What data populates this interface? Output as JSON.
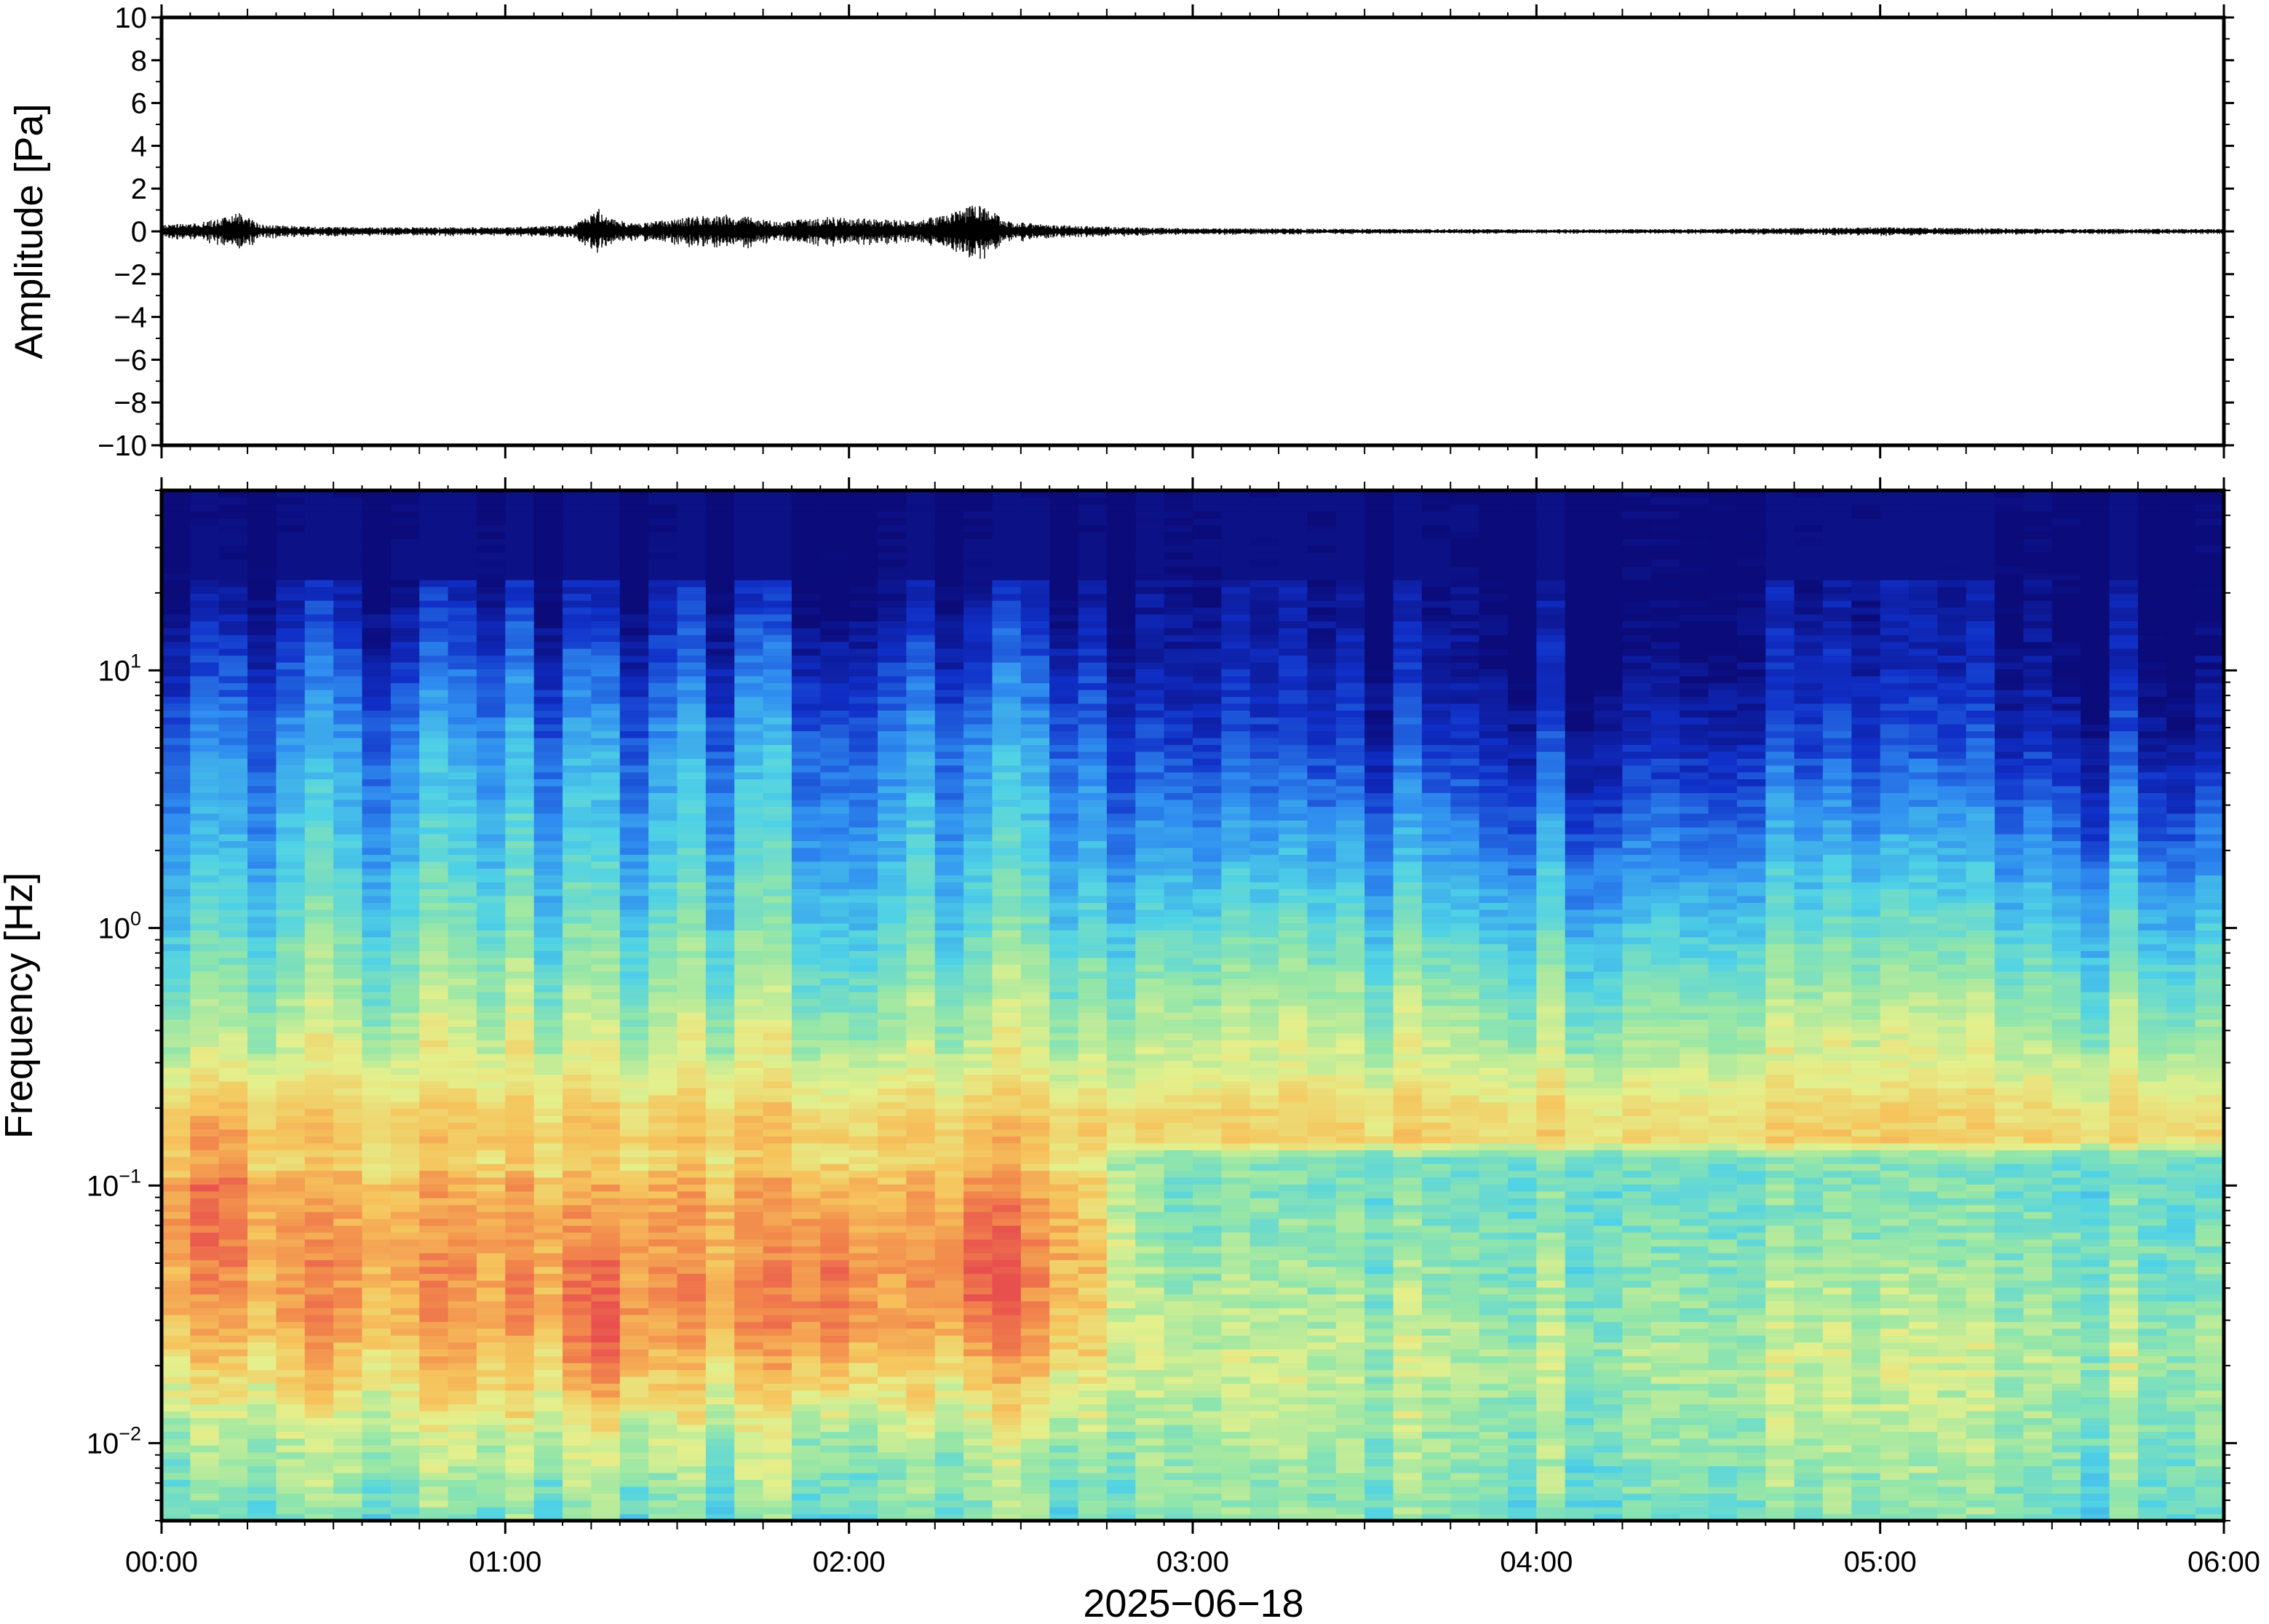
{
  "chart_data": [
    {
      "type": "line",
      "panel": "waveform",
      "ylabel": "Amplitude [Pa]",
      "ylim": [
        -10,
        10
      ],
      "yticks": [
        -10,
        -8,
        -6,
        -4,
        -2,
        0,
        2,
        4,
        6,
        8,
        10
      ],
      "ytick_labels": [
        "−10",
        "−8",
        "−6",
        "−4",
        "−2",
        "0",
        "2",
        "4",
        "6",
        "8",
        "10"
      ],
      "xlim": [
        "00:00",
        "06:00"
      ],
      "series": [
        {
          "t_hours": [
            0.0,
            0.1,
            0.2,
            0.22,
            0.3,
            0.5,
            0.8,
            1.0,
            1.2,
            1.28,
            1.3,
            1.4,
            1.55,
            1.65,
            1.8,
            1.95,
            2.05,
            2.2,
            2.38,
            2.41,
            2.45,
            2.6,
            2.8,
            3.0,
            3.5,
            4.0,
            4.5,
            5.0,
            5.5,
            6.0
          ],
          "envelope_pa": [
            0.3,
            0.4,
            0.7,
            0.9,
            0.3,
            0.2,
            0.2,
            0.2,
            0.3,
            1.2,
            0.6,
            0.4,
            0.7,
            0.8,
            0.5,
            0.7,
            0.6,
            0.5,
            1.3,
            1.1,
            0.5,
            0.3,
            0.2,
            0.15,
            0.12,
            0.1,
            0.12,
            0.2,
            0.12,
            0.12
          ]
        }
      ]
    },
    {
      "type": "heatmap",
      "panel": "spectrogram",
      "ylabel": "Frequency [Hz]",
      "xlabel": "2025−06−18",
      "y_scale": "log",
      "ylim_hz": [
        0.005,
        50
      ],
      "ytick_values": [
        0.01,
        0.1,
        1,
        10
      ],
      "ytick_labels": [
        {
          "base": "10",
          "exp": "−2"
        },
        {
          "base": "10",
          "exp": "−1"
        },
        {
          "base": "10",
          "exp": "0"
        },
        {
          "base": "10",
          "exp": "1"
        }
      ],
      "xticks": [
        "00:00",
        "01:00",
        "02:00",
        "03:00",
        "04:00",
        "05:00",
        "06:00"
      ],
      "colormap": "jet",
      "colormap_stops": [
        "#0b0b7a",
        "#1030c8",
        "#2f8cf0",
        "#4fd2e6",
        "#94e6a8",
        "#e4f08c",
        "#f6c45c",
        "#f28a4c",
        "#e8504e"
      ],
      "intensity_profile": {
        "freq_hz": [
          0.005,
          0.01,
          0.02,
          0.03,
          0.05,
          0.1,
          0.13,
          0.15,
          0.2,
          0.3,
          0.5,
          1,
          2,
          5,
          10,
          20,
          50
        ],
        "first_half_0_to_2h45": [
          0.45,
          0.55,
          0.72,
          0.8,
          0.82,
          0.78,
          0.68,
          0.74,
          0.7,
          0.6,
          0.52,
          0.42,
          0.34,
          0.26,
          0.16,
          0.05,
          0.0
        ],
        "second_half_2h45_to_6h": [
          0.45,
          0.5,
          0.55,
          0.52,
          0.48,
          0.44,
          0.46,
          0.7,
          0.68,
          0.58,
          0.5,
          0.38,
          0.26,
          0.12,
          0.04,
          0.0,
          0.0
        ]
      },
      "hot_spots": [
        {
          "time_hours": 1.3,
          "freq_hz": 0.025,
          "level": "high"
        },
        {
          "time_hours": 1.95,
          "freq_hz": 0.035,
          "level": "high"
        },
        {
          "time_hours": 2.4,
          "freq_hz": 0.05,
          "level": "high"
        },
        {
          "time_hours": 0.15,
          "freq_hz": 0.1,
          "level": "high"
        }
      ]
    }
  ]
}
